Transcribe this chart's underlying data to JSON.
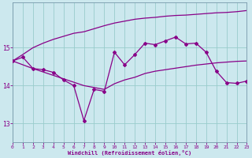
{
  "xlabel": "Windchill (Refroidissement éolien,°C)",
  "bg_color": "#cce8ee",
  "grid_color": "#99cccc",
  "line_color": "#880088",
  "xlim": [
    0,
    23
  ],
  "ylim": [
    12.5,
    16.2
  ],
  "yticks": [
    13,
    14,
    15
  ],
  "xticks": [
    0,
    1,
    2,
    3,
    4,
    5,
    6,
    7,
    8,
    9,
    10,
    11,
    12,
    13,
    14,
    15,
    16,
    17,
    18,
    19,
    20,
    21,
    22,
    23
  ],
  "line1_x": [
    0,
    1,
    2,
    3,
    4,
    5,
    6,
    7,
    8,
    9,
    10,
    11,
    12,
    13,
    14,
    15,
    16,
    17,
    18,
    19,
    20,
    21,
    22,
    23
  ],
  "line1_y": [
    14.65,
    14.75,
    14.45,
    14.42,
    14.35,
    14.15,
    14.0,
    13.08,
    13.9,
    13.85,
    14.88,
    14.55,
    14.82,
    15.12,
    15.08,
    15.18,
    15.28,
    15.1,
    15.12,
    14.88,
    14.38,
    14.08,
    14.06,
    14.12
  ],
  "line2_x": [
    0,
    2,
    7,
    8,
    9,
    10,
    11,
    12,
    13,
    14,
    15,
    16,
    17,
    18,
    19,
    20,
    21,
    22,
    23
  ],
  "line2_y": [
    14.65,
    14.45,
    14.0,
    13.95,
    13.9,
    14.05,
    14.15,
    14.22,
    14.32,
    14.38,
    14.42,
    14.46,
    14.5,
    14.54,
    14.57,
    14.6,
    14.62,
    14.64,
    14.65
  ],
  "line3_x": [
    0,
    1,
    2,
    3,
    4,
    5,
    6,
    7,
    8,
    9,
    10,
    11,
    12,
    13,
    14,
    15,
    16,
    17,
    18,
    19,
    20,
    21,
    22,
    23
  ],
  "line3_y": [
    14.65,
    14.82,
    15.0,
    15.12,
    15.22,
    15.3,
    15.38,
    15.42,
    15.5,
    15.58,
    15.65,
    15.7,
    15.75,
    15.78,
    15.8,
    15.83,
    15.85,
    15.86,
    15.88,
    15.9,
    15.92,
    15.93,
    15.95,
    15.98
  ]
}
